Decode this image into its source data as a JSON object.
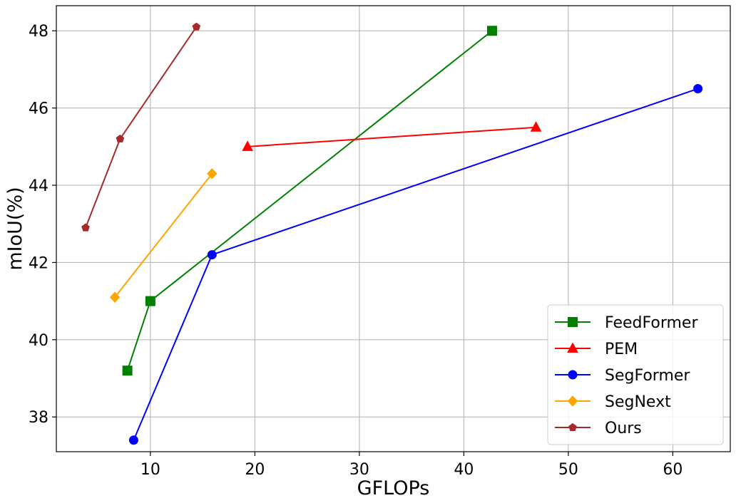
{
  "chart_data": {
    "type": "line",
    "title": "",
    "xlabel": "GFLOPs",
    "ylabel": "mIoU(%)",
    "xlim": [
      1,
      65.5
    ],
    "ylim": [
      37.1,
      48.65
    ],
    "xticks": [
      10,
      20,
      30,
      40,
      50,
      60
    ],
    "yticks": [
      38,
      40,
      42,
      44,
      46,
      48
    ],
    "grid": true,
    "legend_position": "bottom-right",
    "series": [
      {
        "name": "FeedFormer",
        "color": "#008000",
        "marker": "square",
        "x": [
          7.8,
          10.0,
          42.7
        ],
        "y": [
          39.2,
          41.0,
          48.0
        ]
      },
      {
        "name": "PEM",
        "color": "#ff0000",
        "marker": "triangle",
        "x": [
          19.3,
          46.9
        ],
        "y": [
          45.0,
          45.5
        ]
      },
      {
        "name": "SegFormer",
        "color": "#0000ff",
        "marker": "circle",
        "x": [
          8.4,
          15.9,
          62.4
        ],
        "y": [
          37.4,
          42.2,
          46.5
        ]
      },
      {
        "name": "SegNext",
        "color": "#ffa500",
        "marker": "diamond",
        "x": [
          6.6,
          15.9
        ],
        "y": [
          41.1,
          44.3
        ]
      },
      {
        "name": "Ours",
        "color": "#a52a2a",
        "marker": "pentagon",
        "x": [
          3.8,
          7.1,
          14.4
        ],
        "y": [
          42.9,
          45.2,
          48.1
        ]
      }
    ]
  }
}
